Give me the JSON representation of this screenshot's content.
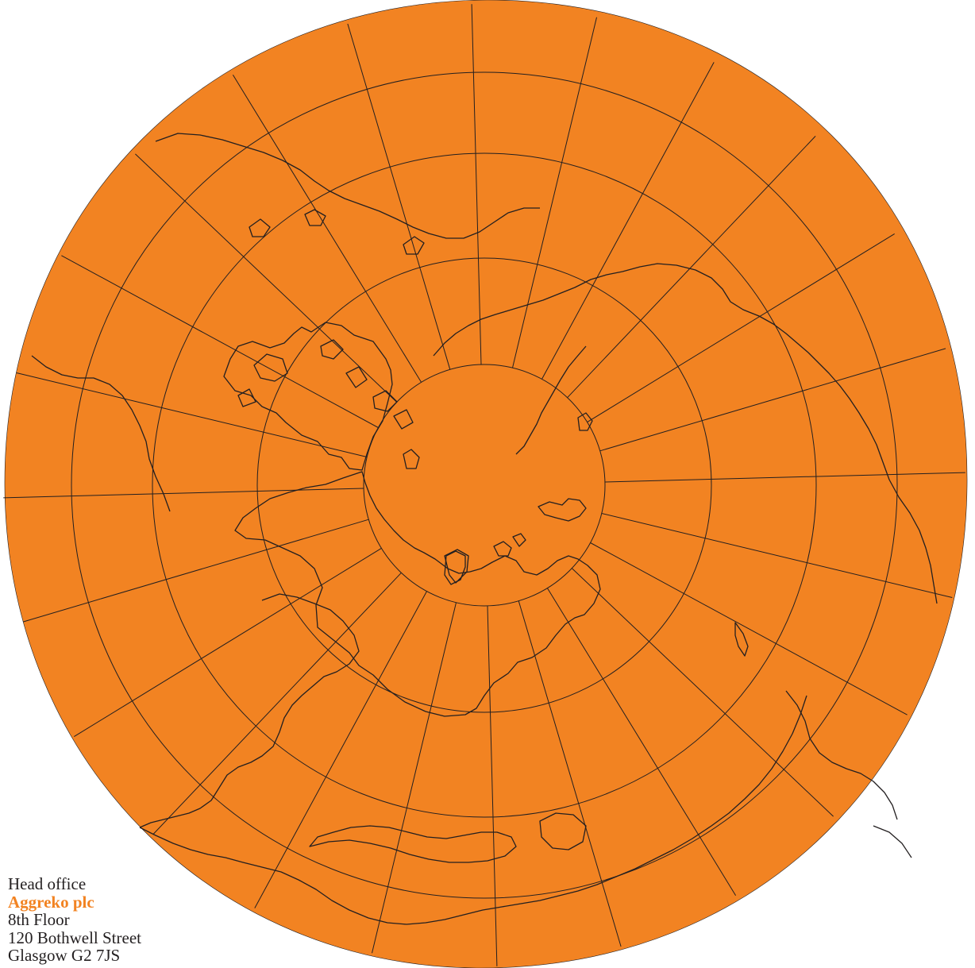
{
  "map": {
    "projection": "polar-azimuthal-north",
    "ocean_fill_color": "#f28322",
    "line_color": "#231f20",
    "background_color": "#ffffff",
    "graticule": true,
    "coastlines": true
  },
  "address": {
    "heading": "Head office",
    "company": "Aggreko plc",
    "line1": "8th Floor",
    "line2": "120 Bothwell Street",
    "line3": "Glasgow G2 7JS"
  }
}
